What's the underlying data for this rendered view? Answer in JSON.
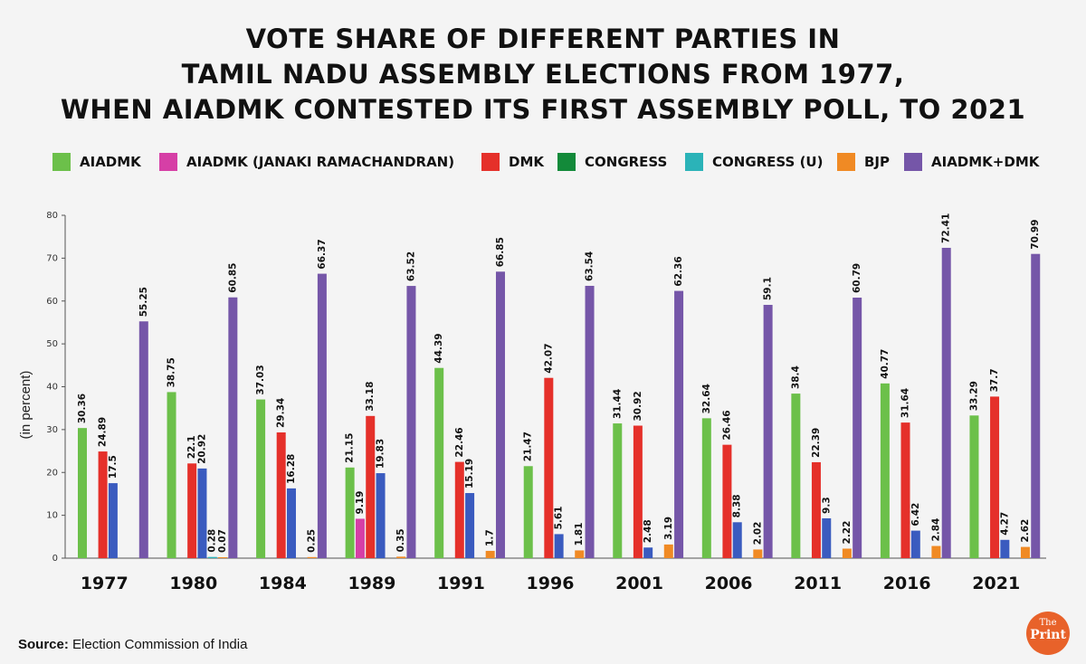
{
  "title_lines": [
    "VOTE SHARE OF DIFFERENT PARTIES IN",
    "TAMIL NADU ASSEMBLY ELECTIONS FROM 1977,",
    "WHEN AIADMK CONTESTED ITS FIRST ASSEMBLY POLL, TO 2021"
  ],
  "source": {
    "label": "Source:",
    "text": "Election Commission of India"
  },
  "logo": {
    "line1": "The",
    "line2": "Print"
  },
  "chart_data": {
    "type": "bar",
    "title": "VOTE SHARE OF DIFFERENT PARTIES IN TAMIL NADU ASSEMBLY ELECTIONS FROM 1977, WHEN AIADMK CONTESTED ITS FIRST ASSEMBLY POLL, TO 2021",
    "xlabel": "",
    "ylabel": "(in percent)",
    "ylim": [
      0,
      80
    ],
    "yticks": [
      0,
      10,
      20,
      30,
      40,
      50,
      60,
      70,
      80
    ],
    "grid": false,
    "legend_position": "top",
    "categories": [
      "1977",
      "1980",
      "1984",
      "1989",
      "1991",
      "1996",
      "2001",
      "2006",
      "2011",
      "2016",
      "2021"
    ],
    "series": [
      {
        "name": "AIADMK",
        "color": "#6cc04a",
        "values": [
          30.36,
          38.75,
          37.03,
          21.15,
          44.39,
          21.47,
          31.44,
          32.64,
          38.4,
          40.77,
          33.29
        ]
      },
      {
        "name": "AIADMK (JANAKI RAMACHANDRAN)",
        "color": "#d63fa6",
        "values": [
          null,
          null,
          null,
          9.19,
          null,
          null,
          null,
          null,
          null,
          null,
          null
        ]
      },
      {
        "name": "DMK",
        "color": "#e5302a",
        "values": [
          24.89,
          22.1,
          29.34,
          33.18,
          22.46,
          42.07,
          30.92,
          26.46,
          22.39,
          31.64,
          37.7
        ]
      },
      {
        "name": "CONGRESS",
        "color": "#3a5bbf",
        "legend_color": "#138a3a",
        "values": [
          17.5,
          20.92,
          16.28,
          19.83,
          15.19,
          5.61,
          2.48,
          8.38,
          9.3,
          6.42,
          4.27
        ]
      },
      {
        "name": "CONGRESS (U)",
        "color": "#2bb3b8",
        "values": [
          null,
          0.28,
          null,
          null,
          null,
          null,
          null,
          null,
          null,
          null,
          null
        ]
      },
      {
        "name": "BJP",
        "color": "#f08a24",
        "values": [
          null,
          0.07,
          0.25,
          0.35,
          1.7,
          1.81,
          3.19,
          2.02,
          2.22,
          2.84,
          2.62
        ]
      },
      {
        "name": "AIADMK+DMK",
        "color": "#7556a8",
        "values": [
          55.25,
          60.85,
          66.37,
          63.52,
          66.85,
          63.54,
          62.36,
          59.1,
          60.79,
          72.41,
          70.99
        ]
      }
    ],
    "value_labels": [
      [
        "30.36",
        null,
        "24.89",
        "17.5",
        null,
        null,
        "55.25"
      ],
      [
        "38.75",
        null,
        "22.1",
        "20.92",
        "0.28",
        "0.07",
        "60.85"
      ],
      [
        "37.03",
        null,
        "29.34",
        "16.28",
        null,
        "0.25",
        "66.37"
      ],
      [
        "21.15",
        "9.19",
        "33.18",
        "19.83",
        null,
        "0.35",
        "63.52"
      ],
      [
        "44.39",
        null,
        "22.46",
        "15.19",
        null,
        "1.7",
        "66.85"
      ],
      [
        "21.47",
        null,
        "42.07",
        "5.61",
        null,
        "1.81",
        "63.54"
      ],
      [
        "31.44",
        null,
        "30.92",
        "2.48",
        null,
        "3.19",
        "62.36"
      ],
      [
        "32.64",
        null,
        "26.46",
        "8.38",
        null,
        "2.02",
        "59.1"
      ],
      [
        "38.4",
        null,
        "22.39",
        "9.3",
        null,
        "2.22",
        "60.79"
      ],
      [
        "40.77",
        null,
        "31.64",
        "6.42",
        null,
        "2.84",
        "72.41"
      ],
      [
        "33.29",
        null,
        "37.7",
        "4.27",
        null,
        "2.62",
        "70.99"
      ]
    ]
  }
}
